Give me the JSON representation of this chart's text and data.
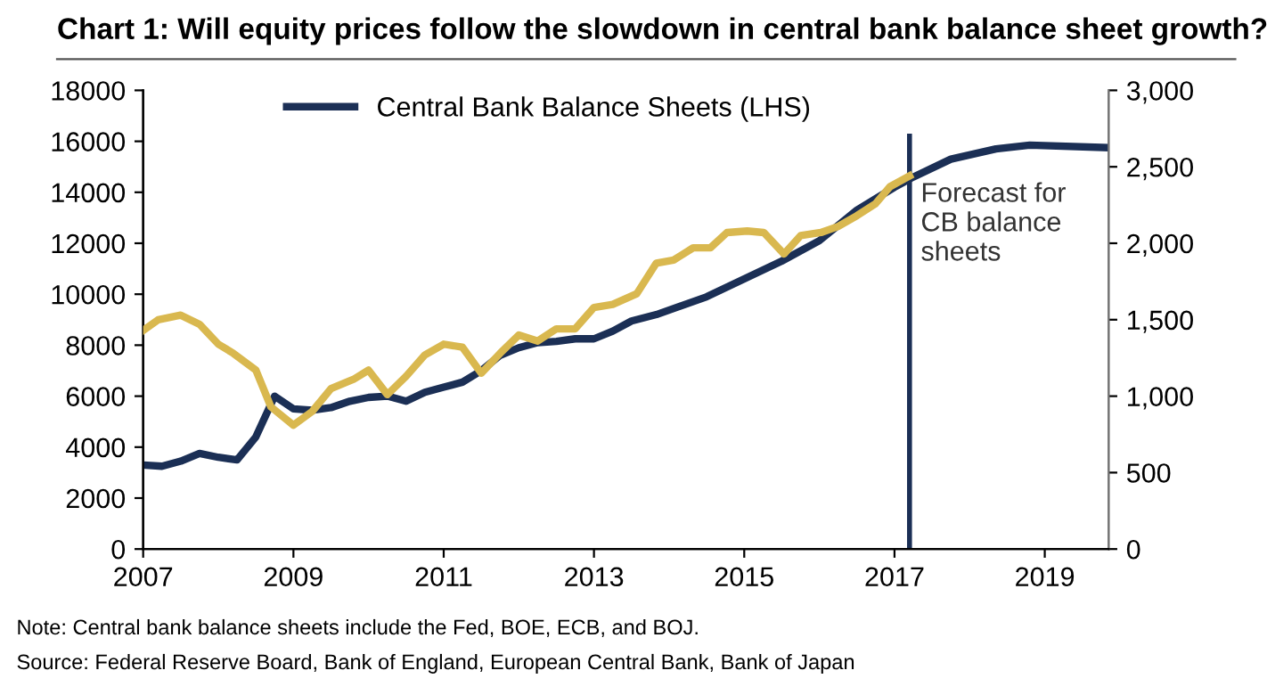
{
  "chart_data": {
    "type": "line",
    "title": "Chart 1: Will equity prices follow the slowdown in central bank balance sheet growth?",
    "xlim": [
      2007,
      2019.85
    ],
    "xticks": [
      2007,
      2009,
      2011,
      2013,
      2015,
      2017,
      2019
    ],
    "ylim": [
      0,
      18000
    ],
    "yticks": [
      0,
      2000,
      4000,
      6000,
      8000,
      10000,
      12000,
      14000,
      16000,
      18000
    ],
    "y2lim": [
      0,
      3000
    ],
    "y2ticks": [
      {
        "value": 0,
        "label": "0"
      },
      {
        "value": 500,
        "label": "500"
      },
      {
        "value": 1000,
        "label": "1,000"
      },
      {
        "value": 1500,
        "label": "1,500"
      },
      {
        "value": 2000,
        "label": "2,000"
      },
      {
        "value": 2500,
        "label": "2,500"
      },
      {
        "value": 3000,
        "label": "3,000"
      }
    ],
    "grid": false,
    "legend": "top",
    "marker": "none",
    "line_style": "solid",
    "series": [
      {
        "name": "Central Bank Balance Sheets (LHS)",
        "color": "#1b2f55",
        "x": [
          2007,
          2007.25,
          2007.5,
          2007.75,
          2008,
          2008.25,
          2008.5,
          2008.75,
          2009,
          2009.25,
          2009.5,
          2009.75,
          2010,
          2010.25,
          2010.5,
          2010.75,
          2011,
          2011.25,
          2011.5,
          2011.75,
          2012,
          2012.25,
          2012.5,
          2012.75,
          2013,
          2013.25,
          2013.5,
          2013.83,
          2014.5,
          2015,
          2015.5,
          2016,
          2016.5,
          2017,
          2017.25,
          2017.75,
          2018.35,
          2018.8,
          2019.85
        ],
        "values": [
          3300,
          3250,
          3450,
          3750,
          3600,
          3500,
          4400,
          6000,
          5500,
          5450,
          5550,
          5800,
          5950,
          6000,
          5800,
          6150,
          6350,
          6550,
          7000,
          7600,
          7900,
          8100,
          8150,
          8250,
          8250,
          8550,
          8950,
          9200,
          9900,
          10600,
          11300,
          12100,
          13300,
          14200,
          14600,
          15300,
          15700,
          15850,
          15750
        ]
      },
      {
        "color": "#d9b84f",
        "axis": "y2",
        "x": [
          2007,
          2007.2,
          2007.5,
          2007.75,
          2008,
          2008.2,
          2008.5,
          2008.7,
          2009,
          2009.25,
          2009.5,
          2009.8,
          2010,
          2010.25,
          2010.5,
          2010.75,
          2011,
          2011.25,
          2011.5,
          2011.75,
          2012,
          2012.25,
          2012.5,
          2012.75,
          2013,
          2013.25,
          2013.57,
          2013.83,
          2014.06,
          2014.32,
          2014.55,
          2014.77,
          2015.04,
          2015.26,
          2015.53,
          2015.75,
          2016.02,
          2016.25,
          2016.5,
          2016.75,
          2016.94,
          2017.2
        ],
        "values": [
          1430,
          1500,
          1530,
          1470,
          1340,
          1280,
          1170,
          930,
          810,
          900,
          1050,
          1110,
          1170,
          1010,
          1130,
          1270,
          1340,
          1320,
          1150,
          1280,
          1400,
          1360,
          1440,
          1440,
          1580,
          1600,
          1670,
          1870,
          1890,
          1970,
          1970,
          2070,
          2080,
          2070,
          1930,
          2050,
          2070,
          2110,
          2180,
          2260,
          2370,
          2440
        ]
      }
    ],
    "ref_lines": [
      {
        "axis": "x",
        "value": 2017.2,
        "label": "Forecast for\nCB balance\nsheets",
        "color": "#1b2f55",
        "line_style": "solid"
      }
    ],
    "annotations": [
      "Note: Central bank balance sheets include the Fed, BOE, ECB, and BOJ.",
      "Source: Federal Reserve Board, Bank of England, European Central Bank, Bank of Japan"
    ]
  }
}
